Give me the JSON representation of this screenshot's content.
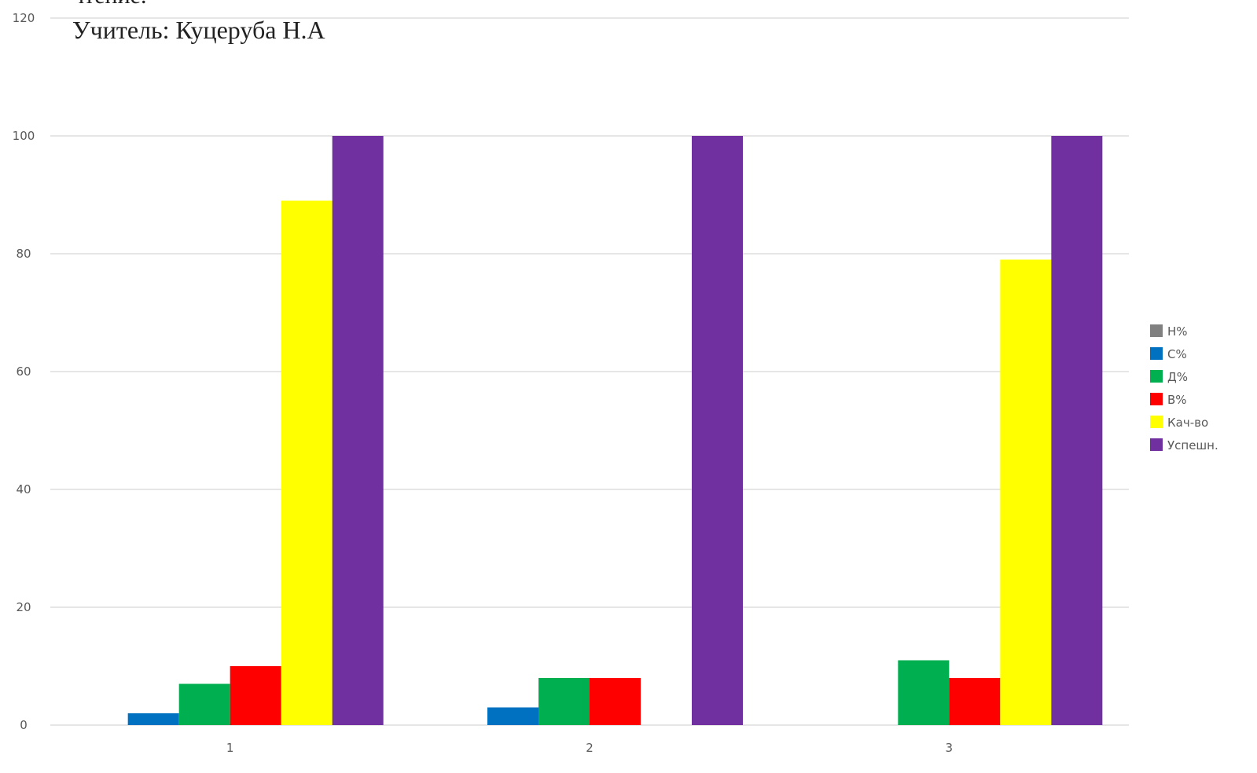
{
  "chart_data": {
    "type": "bar",
    "title": "чтение.",
    "subtitle": "Учитель: Куцеруба Н.А",
    "categories": [
      "1",
      "2",
      "3"
    ],
    "series": [
      {
        "name": "Н%",
        "color": "#808080",
        "values": [
          0,
          0,
          0
        ]
      },
      {
        "name": "С%",
        "color": "#0070c0",
        "values": [
          2,
          3,
          0
        ]
      },
      {
        "name": "Д%",
        "color": "#00b050",
        "values": [
          7,
          8,
          11
        ]
      },
      {
        "name": "В%",
        "color": "#ff0000",
        "values": [
          10,
          8,
          8
        ]
      },
      {
        "name": "Кач-во",
        "color": "#ffff00",
        "values": [
          89,
          0,
          79
        ]
      },
      {
        "name": "Успешн.",
        "color": "#7030a0",
        "values": [
          100,
          100,
          100
        ]
      }
    ],
    "ylim": [
      0,
      120
    ],
    "yticks": [
      0,
      20,
      40,
      60,
      80,
      100,
      120
    ],
    "grid": true,
    "legend_position": "right"
  }
}
